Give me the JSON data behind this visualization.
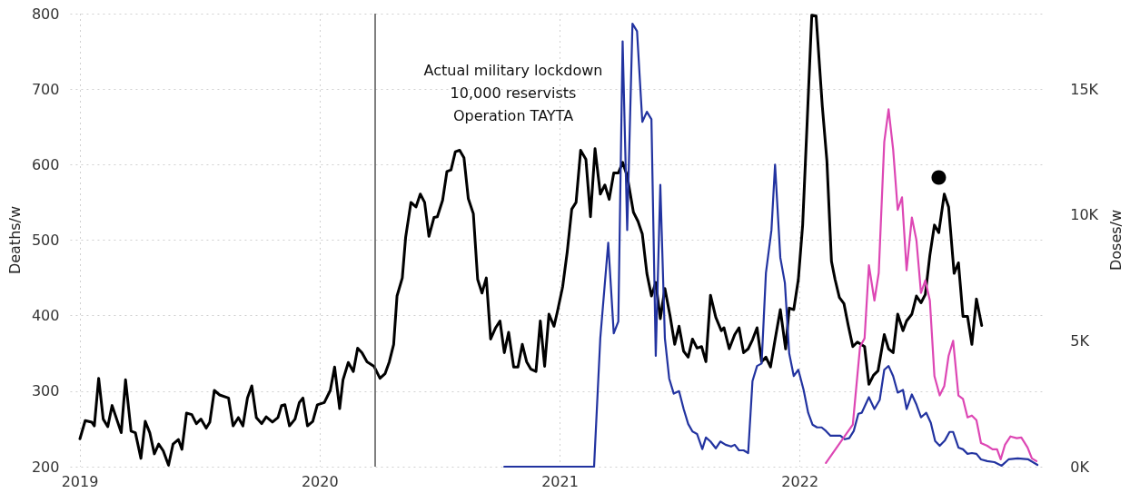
{
  "chart_data": {
    "type": "line",
    "ylabel": "Deaths/w",
    "y2label": "Doses/w",
    "xlim": [
      2018.96,
      2023.02
    ],
    "xticks": [
      2019,
      2020,
      2021,
      2022
    ],
    "ylim": [
      200,
      800
    ],
    "yticks": [
      200,
      300,
      400,
      500,
      600,
      700,
      800
    ],
    "y2lim": [
      0,
      18000
    ],
    "y2ticks": [
      {
        "value": 0,
        "label": "0K"
      },
      {
        "value": 5000,
        "label": "5K"
      },
      {
        "value": 10000,
        "label": "10K"
      },
      {
        "value": 15000,
        "label": "15K"
      }
    ],
    "grid": true,
    "marker": "none",
    "line_style": "solid",
    "ref_lines": [
      {
        "axis": "x",
        "value": 2020.232,
        "color": "#555555"
      }
    ],
    "annotations": [
      "Actual military lockdown\n10,000 reservists\nOperation TAYTA"
    ],
    "series": [
      {
        "color": "#000000",
        "x": [
          2019.0,
          2019.022,
          2019.049,
          2019.06,
          2019.078,
          2019.097,
          2019.116,
          2019.134,
          2019.172,
          2019.19,
          2019.213,
          2019.231,
          2019.254,
          2019.272,
          2019.291,
          2019.31,
          2019.328,
          2019.347,
          2019.369,
          2019.388,
          2019.41,
          2019.425,
          2019.444,
          2019.466,
          2019.485,
          2019.504,
          2019.526,
          2019.541,
          2019.56,
          2019.582,
          2019.619,
          2019.638,
          2019.66,
          2019.679,
          2019.698,
          2019.716,
          2019.735,
          2019.757,
          2019.776,
          2019.802,
          2019.825,
          2019.84,
          2019.854,
          2019.873,
          2019.896,
          2019.914,
          2019.929,
          2019.948,
          2019.97,
          2019.989,
          2020.018,
          2020.043,
          2020.061,
          2020.082,
          2020.096,
          2020.118,
          2020.139,
          2020.157,
          2020.175,
          2020.196,
          2020.225,
          2020.25,
          2020.271,
          2020.289,
          2020.307,
          2020.321,
          2020.343,
          2020.357,
          2020.379,
          2020.4,
          2020.418,
          2020.436,
          2020.454,
          2020.475,
          2020.489,
          2020.511,
          2020.529,
          2020.546,
          2020.564,
          2020.582,
          2020.6,
          2020.618,
          2020.639,
          2020.657,
          2020.675,
          2020.693,
          2020.711,
          2020.732,
          2020.75,
          2020.768,
          2020.786,
          2020.807,
          2020.825,
          2020.843,
          2020.861,
          2020.879,
          2020.9,
          2020.918,
          2020.936,
          2020.954,
          2020.975,
          2020.989,
          2021.011,
          2021.03,
          2021.049,
          2021.067,
          2021.086,
          2021.108,
          2021.127,
          2021.146,
          2021.168,
          2021.187,
          2021.205,
          2021.224,
          2021.243,
          2021.261,
          2021.28,
          2021.306,
          2021.325,
          2021.343,
          2021.362,
          2021.381,
          2021.399,
          2021.418,
          2021.437,
          2021.459,
          2021.478,
          2021.496,
          2021.515,
          2021.534,
          2021.552,
          2021.571,
          2021.59,
          2021.608,
          2021.627,
          2021.649,
          2021.672,
          2021.683,
          2021.705,
          2021.728,
          2021.746,
          2021.765,
          2021.784,
          2021.802,
          2021.821,
          2021.84,
          2021.858,
          2021.877,
          2021.896,
          2021.918,
          2021.94,
          2021.955,
          2021.974,
          2021.993,
          2022.011,
          2022.03,
          2022.049,
          2022.067,
          2022.093,
          2022.112,
          2022.131,
          2022.146,
          2022.164,
          2022.183,
          2022.201,
          2022.22,
          2022.239,
          2022.269,
          2022.287,
          2022.306,
          2022.325,
          2022.351,
          2022.369,
          2022.388,
          2022.407,
          2022.429,
          2022.444,
          2022.466,
          2022.485,
          2022.504,
          2022.522,
          2022.541,
          2022.56,
          2022.578,
          2022.601,
          2022.619,
          2022.642,
          2022.66,
          2022.679,
          2022.698,
          2022.716,
          2022.735,
          2022.757
        ],
        "values": [
          237,
          261,
          259,
          254,
          317,
          263,
          253,
          281,
          245,
          315,
          247,
          245,
          211,
          260,
          245,
          217,
          230,
          221,
          202,
          230,
          236,
          223,
          271,
          269,
          257,
          263,
          251,
          259,
          301,
          295,
          291,
          254,
          265,
          254,
          291,
          307,
          265,
          257,
          266,
          259,
          265,
          281,
          282,
          254,
          263,
          285,
          291,
          254,
          260,
          282,
          285,
          301,
          332,
          277,
          315,
          338,
          326,
          357,
          351,
          339,
          333,
          317,
          323,
          339,
          362,
          426,
          450,
          504,
          550,
          544,
          561,
          550,
          505,
          530,
          531,
          553,
          591,
          593,
          617,
          619,
          609,
          555,
          535,
          448,
          430,
          450,
          369,
          384,
          393,
          351,
          378,
          332,
          332,
          362,
          339,
          329,
          326,
          393,
          333,
          402,
          386,
          405,
          438,
          484,
          541,
          550,
          619,
          607,
          531,
          621,
          561,
          573,
          554,
          589,
          589,
          603,
          585,
          537,
          525,
          508,
          456,
          426,
          444,
          396,
          436,
          399,
          362,
          386,
          353,
          345,
          369,
          357,
          359,
          339,
          427,
          398,
          380,
          384,
          356,
          375,
          384,
          351,
          356,
          368,
          384,
          339,
          345,
          332,
          368,
          408,
          356,
          410,
          408,
          448,
          520,
          658,
          798,
          797,
          677,
          605,
          472,
          448,
          424,
          416,
          387,
          359,
          365,
          359,
          309,
          321,
          327,
          375,
          356,
          351,
          402,
          380,
          393,
          402,
          426,
          417,
          428,
          480,
          520,
          510,
          561,
          544,
          456,
          470,
          399,
          399,
          362,
          422,
          387
        ]
      },
      {
        "color": "#2233a0",
        "axis": "y2",
        "x": [
          2020.768,
          2021.142,
          2021.168,
          2021.201,
          2021.224,
          2021.243,
          2021.261,
          2021.28,
          2021.302,
          2021.321,
          2021.343,
          2021.362,
          2021.381,
          2021.399,
          2021.418,
          2021.437,
          2021.455,
          2021.474,
          2021.496,
          2021.515,
          2021.534,
          2021.552,
          2021.571,
          2021.593,
          2021.608,
          2021.627,
          2021.649,
          2021.668,
          2021.69,
          2021.713,
          2021.728,
          2021.746,
          2021.765,
          2021.784,
          2021.802,
          2021.821,
          2021.84,
          2021.858,
          2021.881,
          2021.896,
          2021.918,
          2021.937,
          2021.955,
          2021.974,
          2021.993,
          2022.015,
          2022.034,
          2022.052,
          2022.071,
          2022.09,
          2022.108,
          2022.127,
          2022.149,
          2022.168,
          2022.187,
          2022.205,
          2022.224,
          2022.243,
          2022.257,
          2022.287,
          2022.31,
          2022.332,
          2022.351,
          2022.369,
          2022.388,
          2022.407,
          2022.429,
          2022.444,
          2022.466,
          2022.485,
          2022.504,
          2022.526,
          2022.545,
          2022.563,
          2022.582,
          2022.604,
          2022.623,
          2022.638,
          2022.66,
          2022.679,
          2022.698,
          2022.716,
          2022.735,
          2022.754,
          2022.78,
          2022.81,
          2022.84,
          2022.869,
          2022.907,
          2022.951,
          2022.989
        ],
        "values": [
          0,
          0,
          5120,
          8900,
          5300,
          5770,
          16900,
          9400,
          17600,
          17300,
          13700,
          14100,
          13800,
          4400,
          11200,
          5100,
          3500,
          2900,
          3000,
          2300,
          1700,
          1400,
          1300,
          700,
          1160,
          1000,
          730,
          1000,
          870,
          800,
          870,
          650,
          650,
          540,
          3400,
          4000,
          4100,
          7700,
          9400,
          12000,
          8300,
          7300,
          4500,
          3600,
          3850,
          3050,
          2140,
          1670,
          1560,
          1560,
          1420,
          1230,
          1230,
          1230,
          1090,
          1130,
          1420,
          2100,
          2140,
          2760,
          2290,
          2650,
          3850,
          4000,
          3600,
          2940,
          3050,
          2290,
          2870,
          2470,
          1960,
          2140,
          1740,
          1020,
          830,
          1050,
          1380,
          1380,
          760,
          690,
          510,
          540,
          510,
          290,
          220,
          180,
          40,
          290,
          330,
          290,
          70
        ]
      },
      {
        "color": "#dd47b4",
        "axis": "y2",
        "x": [
          2022.108,
          2022.22,
          2022.25,
          2022.269,
          2022.287,
          2022.31,
          2022.328,
          2022.351,
          2022.369,
          2022.388,
          2022.407,
          2022.425,
          2022.444,
          2022.466,
          2022.485,
          2022.504,
          2022.522,
          2022.541,
          2022.56,
          2022.582,
          2022.601,
          2022.619,
          2022.638,
          2022.66,
          2022.679,
          2022.698,
          2022.716,
          2022.735,
          2022.754,
          2022.78,
          2022.802,
          2022.821,
          2022.836,
          2022.854,
          2022.877,
          2022.903,
          2022.922,
          2022.948,
          2022.966,
          2022.985
        ],
        "values": [
          150,
          1670,
          4760,
          5100,
          8000,
          6600,
          7700,
          12900,
          14200,
          12600,
          10200,
          10700,
          7800,
          9900,
          9000,
          6900,
          7400,
          6600,
          3600,
          2830,
          3200,
          4400,
          5000,
          2830,
          2690,
          1960,
          2030,
          1850,
          940,
          830,
          690,
          690,
          290,
          870,
          1200,
          1130,
          1160,
          760,
          330,
          220
        ]
      },
      {
        "type": "scatter",
        "marker": "circle",
        "color": "#000000",
        "x": [
          2022.578
        ],
        "values": [
          583
        ]
      }
    ]
  }
}
